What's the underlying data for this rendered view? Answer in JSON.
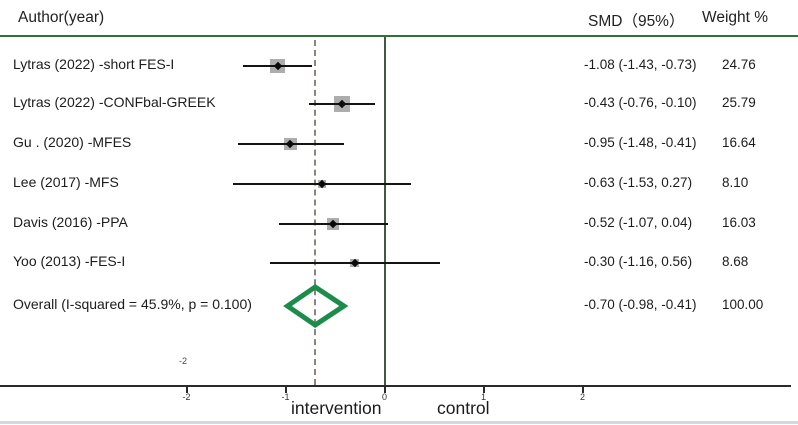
{
  "header": {
    "author_col": "Author(year)",
    "smd_col": "SMD（95%）",
    "weight_col": "Weight %"
  },
  "colors": {
    "top_rule_green": "#336f3b",
    "zero_line_green": "#3e5a42",
    "dashed_line_gray": "#8e8477",
    "ci_black": "#141414",
    "weight_box_gray": "#adadad",
    "diamond_green": "#1b8c4a",
    "bottom_rule_light": "#d2d9e2"
  },
  "chart_data": {
    "type": "forest",
    "title": "",
    "xlabel_left": "intervention",
    "xlabel_right": "control",
    "axis": {
      "ticks": [
        -2,
        -1,
        0,
        1,
        2
      ],
      "tick_labels": [
        "-2",
        "-1",
        "0",
        "1",
        "2"
      ],
      "stray_label_above_axis": "-2",
      "null_line_x": 0,
      "overall_dashed_line_x": -0.7
    },
    "studies": [
      {
        "label": "Lytras (2022)  -short FES-I",
        "smd": -1.08,
        "ci_low": -1.43,
        "ci_high": -0.73,
        "weight": 24.76,
        "smd_text": "-1.08 (-1.43, -0.73)",
        "weight_text": "24.76"
      },
      {
        "label": "Lytras (2022)  -CONFbal-GREEK",
        "smd": -0.43,
        "ci_low": -0.76,
        "ci_high": -0.1,
        "weight": 25.79,
        "smd_text": "-0.43 (-0.76, -0.10)",
        "weight_text": "25.79"
      },
      {
        "label": "Gu . (2020) -MFES",
        "smd": -0.95,
        "ci_low": -1.48,
        "ci_high": -0.41,
        "weight": 16.64,
        "smd_text": "-0.95 (-1.48, -0.41)",
        "weight_text": "16.64"
      },
      {
        "label": "Lee (2017)  -MFS",
        "smd": -0.63,
        "ci_low": -1.53,
        "ci_high": 0.27,
        "weight": 8.1,
        "smd_text": "-0.63 (-1.53, 0.27)",
        "weight_text": "8.10"
      },
      {
        "label": "Davis (2016)  -PPA",
        "smd": -0.52,
        "ci_low": -1.07,
        "ci_high": 0.04,
        "weight": 16.03,
        "smd_text": "-0.52 (-1.07, 0.04)",
        "weight_text": "16.03"
      },
      {
        "label": "Yoo (2013)  -FES-I",
        "smd": -0.3,
        "ci_low": -1.16,
        "ci_high": 0.56,
        "weight": 8.68,
        "smd_text": "-0.30 (-1.16, 0.56)",
        "weight_text": "8.68"
      }
    ],
    "overall": {
      "label": "Overall  (I-squared = 45.9%, p = 0.100)",
      "smd": -0.7,
      "ci_low": -0.98,
      "ci_high": -0.41,
      "weight": 100.0,
      "smd_text": "-0.70 (-0.98, -0.41)",
      "weight_text": "100.00",
      "heterogeneity_i_squared": "45.9%",
      "heterogeneity_p": "0.100"
    }
  }
}
